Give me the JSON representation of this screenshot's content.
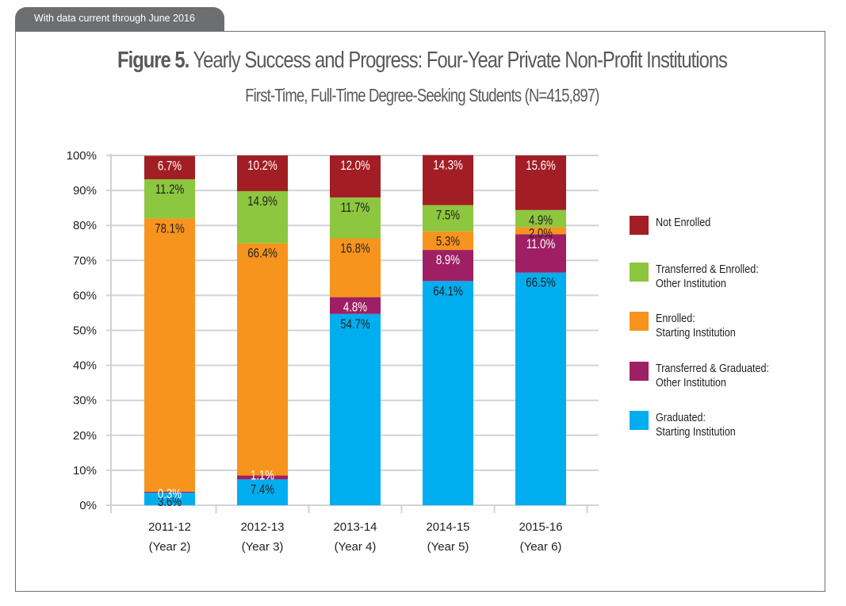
{
  "header_tab": "With data current through June 2016",
  "title_bold": "Figure 5.",
  "title_rest": " Yearly Success and Progress: Four-Year Private Non-Profit Institutions",
  "subtitle": "First-Time, Full-Time Degree-Seeking Students (N=415,897)",
  "chart_data": {
    "type": "bar",
    "stacked": true,
    "title": "Figure 5. Yearly Success and Progress: Four-Year Private Non-Profit Institutions",
    "subtitle": "First-Time, Full-Time Degree-Seeking Students (N=415,897)",
    "categories": [
      [
        "2011-12",
        "(Year 2)"
      ],
      [
        "2012-13",
        "(Year 3)"
      ],
      [
        "2013-14",
        "(Year 4)"
      ],
      [
        "2014-15",
        "(Year 5)"
      ],
      [
        "2015-16",
        "(Year 6)"
      ]
    ],
    "ylim": [
      0,
      100
    ],
    "yticks": [
      "0%",
      "10%",
      "20%",
      "30%",
      "40%",
      "50%",
      "60%",
      "70%",
      "80%",
      "90%",
      "100%"
    ],
    "grid": true,
    "legend_position": "right",
    "series": [
      {
        "name": "Graduated: Starting Institution",
        "legend": [
          "Graduated:",
          "Starting Institution"
        ],
        "color": "#00aeef",
        "label_color": "#231f20",
        "values": [
          3.6,
          7.4,
          54.7,
          64.1,
          66.5
        ]
      },
      {
        "name": "Transferred & Graduated: Other Institution",
        "legend": [
          "Transferred & Graduated:",
          "Other Institution"
        ],
        "color": "#9e1f63",
        "label_color": "#ffffff",
        "values": [
          0.3,
          1.1,
          4.8,
          8.9,
          11.0
        ]
      },
      {
        "name": "Enrolled: Starting Institution",
        "legend": [
          "Enrolled:",
          "Starting Institution"
        ],
        "color": "#f7941d",
        "label_color": "#231f20",
        "values": [
          78.1,
          66.4,
          16.8,
          5.3,
          2.0
        ]
      },
      {
        "name": "Transferred & Enrolled: Other Institution",
        "legend": [
          "Transferred & Enrolled:",
          "Other Institution"
        ],
        "color": "#8dc63f",
        "label_color": "#231f20",
        "values": [
          11.2,
          14.9,
          11.7,
          7.5,
          4.9
        ]
      },
      {
        "name": "Not Enrolled",
        "legend": [
          "Not Enrolled"
        ],
        "color": "#a31d24",
        "label_color": "#ffffff",
        "values": [
          6.7,
          10.2,
          12.0,
          14.3,
          15.6
        ]
      }
    ]
  }
}
